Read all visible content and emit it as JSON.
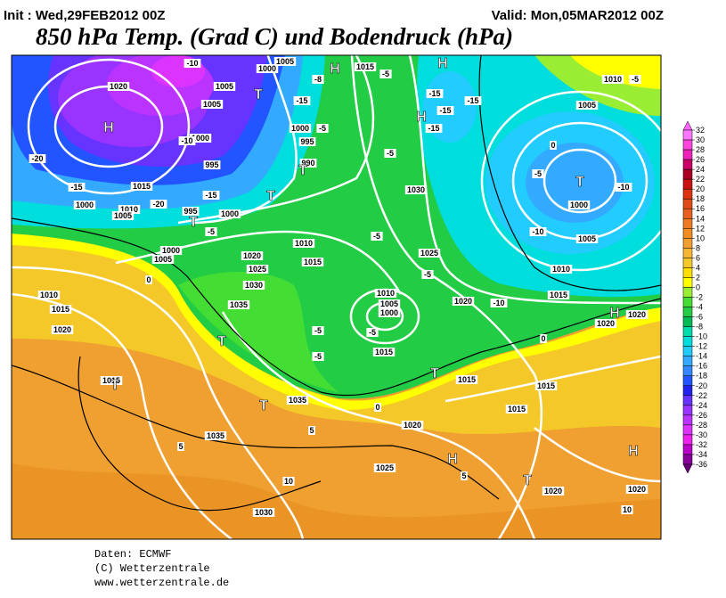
{
  "header": {
    "init": "Init : Wed,29FEB2012 00Z",
    "valid": "Valid: Mon,05MAR2012 00Z",
    "title": "850 hPa Temp. (Grad C) und Bodendruck (hPa)"
  },
  "colorbar": {
    "ticks": [
      32,
      30,
      28,
      26,
      24,
      22,
      20,
      18,
      16,
      14,
      12,
      10,
      8,
      6,
      4,
      2,
      0,
      -2,
      -4,
      -6,
      -8,
      -10,
      -12,
      -14,
      -16,
      -18,
      -20,
      -22,
      -24,
      -26,
      -28,
      -30,
      -32,
      -34,
      -36
    ],
    "colors": [
      "#ff66ff",
      "#ff77ff",
      "#ff44dd",
      "#ee22bb",
      "#cc0066",
      "#aa0022",
      "#cc1111",
      "#dd3311",
      "#e04a1a",
      "#e86020",
      "#ee7a22",
      "#f08c22",
      "#f0a030",
      "#f5b534",
      "#f5c82a",
      "#ffdd00",
      "#ffff00",
      "#99ee33",
      "#44dd33",
      "#22cc44",
      "#00bb55",
      "#00ddaa",
      "#00dddd",
      "#22ccff",
      "#33aaff",
      "#3388ff",
      "#2255ff",
      "#2222ee",
      "#6633ff",
      "#9933ff",
      "#bb33ff",
      "#dd33ff",
      "#ee22ee",
      "#bb00cc",
      "#880099",
      "#660077"
    ]
  },
  "map": {
    "labels": [
      "1020",
      "1005",
      "1000",
      "1015",
      "1005",
      "1005",
      "1000",
      "995",
      "1000",
      "995",
      "990",
      "1015",
      "1010",
      "1005",
      "1000",
      "995",
      "1000",
      "1000",
      "1005",
      "1020",
      "1025",
      "1030",
      "1010",
      "1015",
      "1030",
      "1025",
      "1020",
      "1010",
      "1005",
      "1000",
      "1015",
      "1035",
      "1010",
      "1015",
      "1020",
      "1015",
      "1035",
      "1035",
      "1020",
      "1025",
      "1030",
      "1015",
      "1015",
      "1015",
      "1020",
      "1020",
      "1020",
      "1020",
      "1015",
      "1010",
      "1005",
      "1000",
      "1005",
      "1010",
      "-10",
      "-20",
      "-15",
      "-20",
      "-15",
      "-10",
      "-5",
      "-5",
      "-15",
      "-15",
      "-15",
      "-15",
      "-5",
      "-5",
      "-5",
      "-5",
      "-5",
      "-5",
      "-5",
      "0",
      "0",
      "5",
      "5",
      "10",
      "10",
      "0",
      "-5",
      "-10",
      "-10",
      "-10",
      "-5",
      "0",
      "5",
      "-8",
      "-15",
      "H",
      "T",
      "H",
      "H",
      "H",
      "T",
      "T",
      "T",
      "T",
      "T",
      "T",
      "H",
      "T",
      "H",
      "H",
      "T",
      "T"
    ]
  },
  "footer": {
    "lines": [
      "Daten: ECMWF",
      "(C) Wetterzentrale",
      "www.wetterzentrale.de"
    ]
  }
}
